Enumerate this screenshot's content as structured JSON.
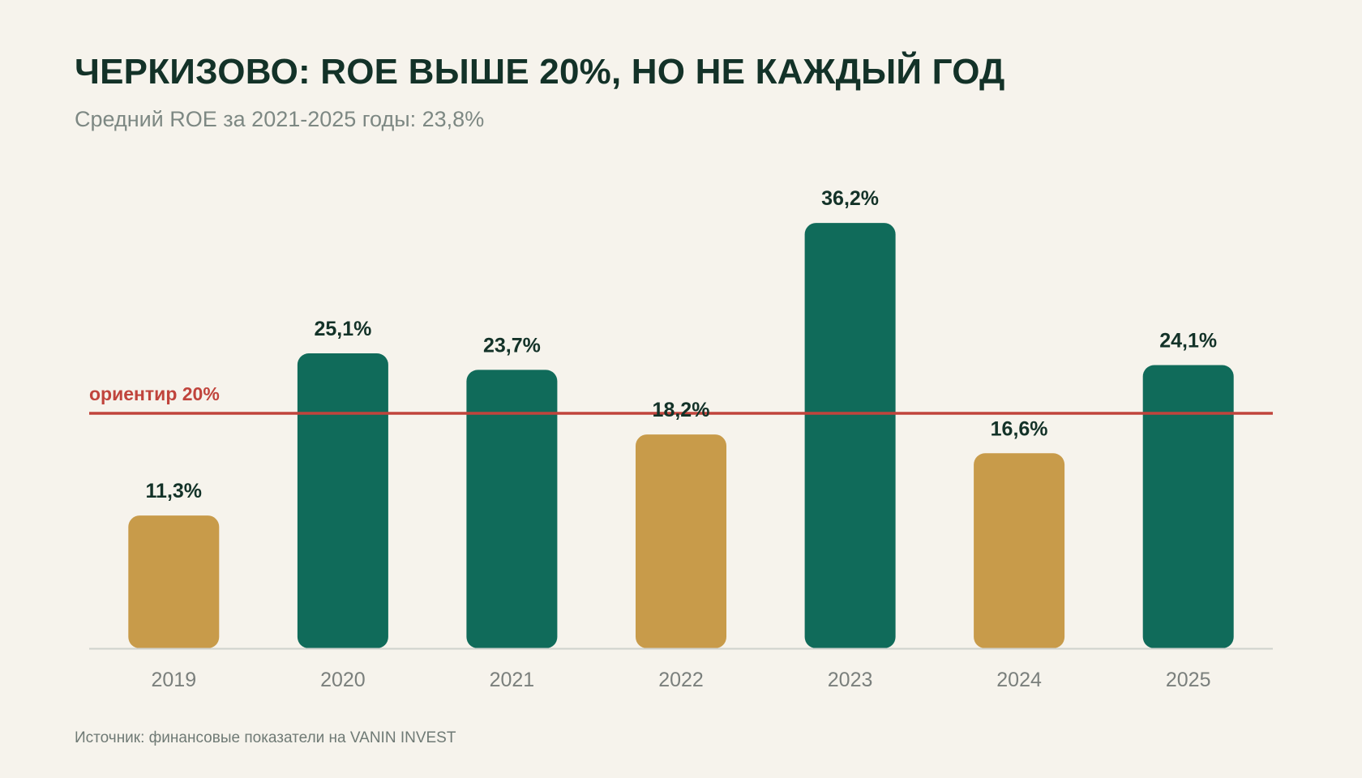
{
  "header": {
    "title": "ЧЕРКИЗОВО: ROE ВЫШЕ 20%, НО НЕ КАЖДЫЙ ГОД",
    "subtitle": "Средний ROE за 2021-2025 годы: 23,8%"
  },
  "footer": {
    "source": "Источник: финансовые показатели на VANIN INVEST"
  },
  "chart_data": {
    "type": "bar",
    "title": "ЧЕРКИЗОВО: ROE ВЫШЕ 20%, НО НЕ КАЖДЫЙ ГОД",
    "subtitle": "Средний ROE за 2021-2025 годы: 23,8%",
    "xlabel": "",
    "ylabel": "",
    "ylim": [
      0,
      40
    ],
    "grid": false,
    "categories": [
      "2019",
      "2020",
      "2021",
      "2022",
      "2023",
      "2024",
      "2025"
    ],
    "values": [
      11.3,
      25.1,
      23.7,
      18.2,
      36.2,
      16.6,
      24.1
    ],
    "data_labels": [
      "11,3%",
      "25,1%",
      "23,7%",
      "18,2%",
      "36,2%",
      "16,6%",
      "24,1%"
    ],
    "reference_line": {
      "value": 20,
      "label": "ориентир 20%",
      "color": "#c0443c"
    },
    "colors": {
      "above_target": "#106b5a",
      "below_target": "#c89b4a",
      "axis": "#cfd2cd"
    }
  }
}
